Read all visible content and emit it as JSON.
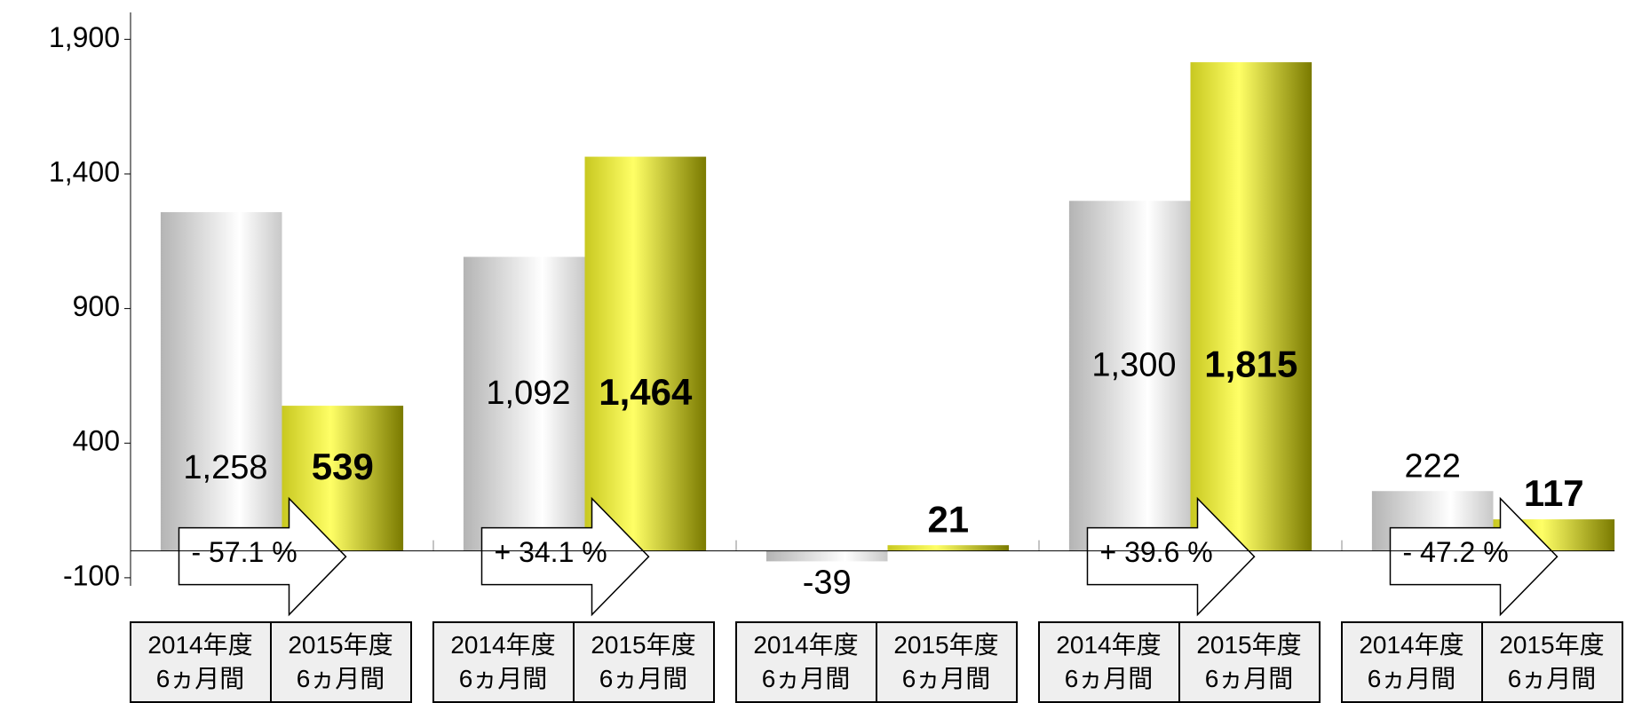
{
  "chart_data": {
    "type": "bar",
    "categories": [
      null,
      null,
      null,
      null,
      null
    ],
    "series": [
      {
        "name": "2014年度\n6ヵ月間",
        "color": "#c8c8c8",
        "values": [
          1258,
          1092,
          -39,
          1300,
          222
        ],
        "value_labels": [
          "1,258",
          "1,092",
          "-39",
          "1,300",
          "222"
        ]
      },
      {
        "name": "2015年度\n6ヵ月間",
        "color": "#e8e830",
        "values": [
          539,
          1464,
          21,
          1815,
          117
        ],
        "value_labels": [
          "539",
          "1,464",
          "21",
          "1,815",
          "117"
        ]
      }
    ],
    "annotations": [
      "- 57.1 %",
      "+ 34.1 %",
      null,
      "+ 39.6 %",
      "- 47.2 %"
    ],
    "ylim": [
      -130,
      2000
    ],
    "yticks": [
      {
        "value": -100,
        "label": "-100"
      },
      400,
      900,
      {
        "value": 1400,
        "label": "1,400"
      },
      {
        "value": 1900,
        "label": "1,900"
      }
    ],
    "grid": false
  }
}
